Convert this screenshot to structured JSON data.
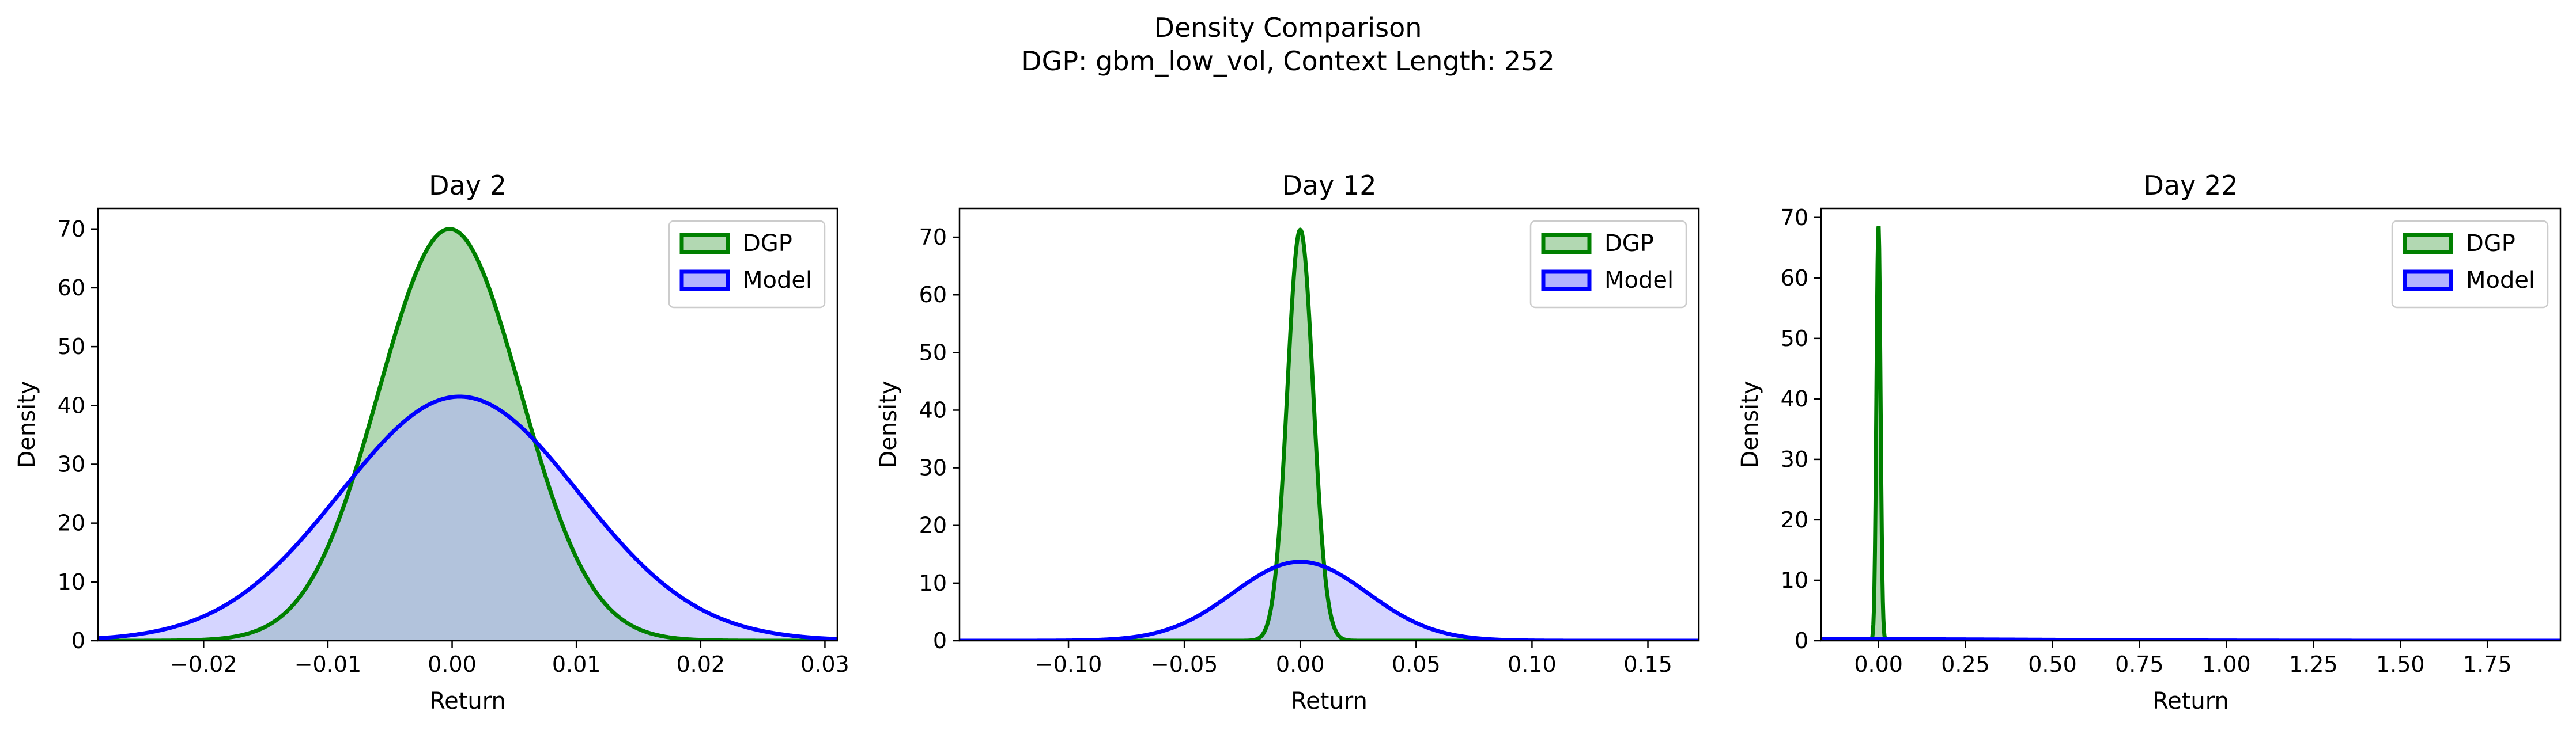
{
  "figure": {
    "title_line1": "Density Comparison",
    "title_line2": "DGP: gbm_low_vol, Context Length: 252"
  },
  "colors": {
    "dgp_line": "#008000",
    "dgp_fill": "#b2d8b2",
    "model_line": "#0000ff",
    "model_fill": "#b2b2ff",
    "overlap_fill": "#7f98c8"
  },
  "chart_data": [
    {
      "type": "area",
      "title": "Day 2",
      "xlabel": "Return",
      "ylabel": "Density",
      "xlim": [
        -0.0285,
        0.031
      ],
      "ylim": [
        0,
        73.5
      ],
      "xticks": [
        -0.02,
        -0.01,
        0.0,
        0.01,
        0.02,
        0.03
      ],
      "xtick_labels": [
        "−0.02",
        "−0.01",
        "0.00",
        "0.01",
        "0.02",
        "0.03"
      ],
      "yticks": [
        0,
        10,
        20,
        30,
        40,
        50,
        60,
        70
      ],
      "ytick_labels": [
        "0",
        "10",
        "20",
        "30",
        "40",
        "50",
        "60",
        "70"
      ],
      "legend": {
        "position": "upper-right",
        "entries": [
          "DGP",
          "Model"
        ]
      },
      "series": [
        {
          "name": "DGP",
          "mean": -0.0002,
          "std": 0.0057,
          "peak": 70.0
        },
        {
          "name": "Model",
          "mean": 0.0006,
          "std": 0.0096,
          "peak": 41.5
        }
      ]
    },
    {
      "type": "area",
      "title": "Day 12",
      "xlabel": "Return",
      "ylabel": "Density",
      "xlim": [
        -0.147,
        0.172
      ],
      "ylim": [
        0,
        75
      ],
      "xticks": [
        -0.1,
        -0.05,
        0.0,
        0.05,
        0.1,
        0.15
      ],
      "xtick_labels": [
        "−0.10",
        "−0.05",
        "0.00",
        "0.05",
        "0.10",
        "0.15"
      ],
      "yticks": [
        0,
        10,
        20,
        30,
        40,
        50,
        60,
        70
      ],
      "ytick_labels": [
        "0",
        "10",
        "20",
        "30",
        "40",
        "50",
        "60",
        "70"
      ],
      "legend": {
        "position": "upper-right",
        "entries": [
          "DGP",
          "Model"
        ]
      },
      "series": [
        {
          "name": "DGP",
          "mean": 0.0,
          "std": 0.0056,
          "peak": 71.3
        },
        {
          "name": "Model",
          "mean": 0.0,
          "std": 0.029,
          "peak": 13.7
        }
      ]
    },
    {
      "type": "area",
      "title": "Day 22",
      "xlabel": "Return",
      "ylabel": "Density",
      "xlim": [
        -0.165,
        1.96
      ],
      "ylim": [
        0,
        71.5
      ],
      "xticks": [
        0.0,
        0.25,
        0.5,
        0.75,
        1.0,
        1.25,
        1.5,
        1.75
      ],
      "xtick_labels": [
        "0.00",
        "0.25",
        "0.50",
        "0.75",
        "1.00",
        "1.25",
        "1.50",
        "1.75"
      ],
      "yticks": [
        0,
        10,
        20,
        30,
        40,
        50,
        60,
        70
      ],
      "ytick_labels": [
        "0",
        "10",
        "20",
        "30",
        "40",
        "50",
        "60",
        "70"
      ],
      "legend": {
        "position": "upper-right",
        "entries": [
          "DGP",
          "Model"
        ]
      },
      "series": [
        {
          "name": "DGP",
          "mean": 0.0,
          "std": 0.0058,
          "peak": 68.8
        },
        {
          "name": "Model",
          "mean": 0.0,
          "std": 0.5,
          "peak": 0.25
        }
      ]
    }
  ]
}
